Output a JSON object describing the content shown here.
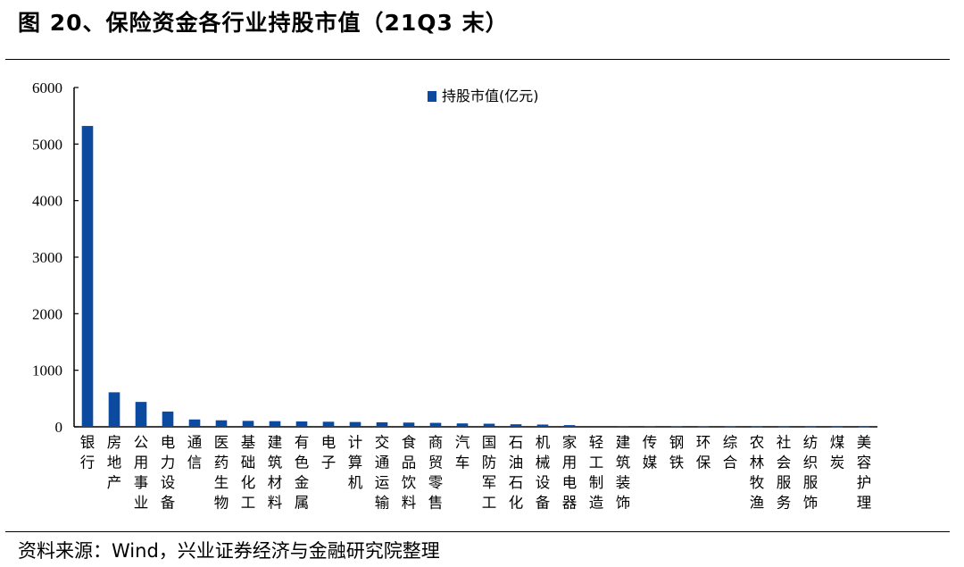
{
  "header": {
    "title": "图 20、保险资金各行业持股市值（21Q3 末）"
  },
  "footer": {
    "source": "资料来源：Wind，兴业证券经济与金融研究院整理"
  },
  "colors": {
    "bar": "#0b4a9e",
    "axis": "#000000"
  },
  "chart_data": {
    "type": "bar",
    "categories": [
      "银行",
      "房地产",
      "公用事业",
      "电力设备",
      "通信",
      "医药生物",
      "基础化工",
      "建筑材料",
      "有色金属",
      "电子",
      "计算机",
      "交通运输",
      "食品饮料",
      "商贸零售",
      "汽车",
      "国防军工",
      "石油石化",
      "机械设备",
      "家用电器",
      "轻工制造",
      "建筑装饰",
      "传媒",
      "钢铁",
      "环保",
      "综合",
      "农林牧渔",
      "社会服务",
      "纺织服饰",
      "煤炭",
      "美容护理"
    ],
    "series": [
      {
        "name": "持股市值(亿元)",
        "values": [
          5320,
          610,
          440,
          270,
          130,
          115,
          105,
          100,
          95,
          90,
          85,
          80,
          75,
          70,
          60,
          55,
          45,
          40,
          30,
          15,
          12,
          10,
          8,
          7,
          6,
          5,
          5,
          4,
          3,
          2
        ]
      }
    ],
    "yticks": [
      0,
      1000,
      2000,
      3000,
      4000,
      5000,
      6000
    ],
    "ylim": [
      0,
      6000
    ],
    "grid": false,
    "legend_position": "top-center"
  }
}
